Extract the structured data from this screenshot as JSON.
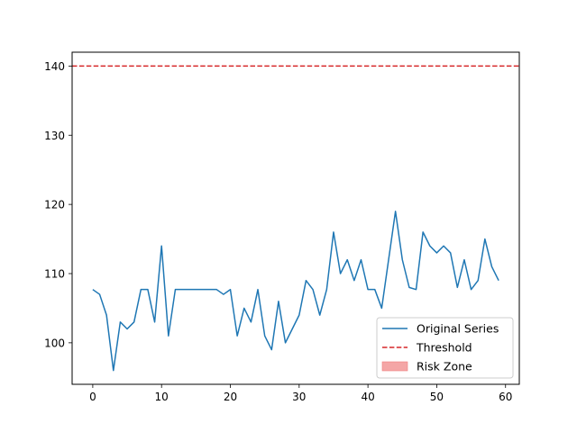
{
  "chart_data": {
    "type": "line",
    "title": "",
    "xlabel": "",
    "ylabel": "",
    "xlim": [
      -3,
      62
    ],
    "ylim": [
      94,
      142
    ],
    "xticks": [
      0,
      10,
      20,
      30,
      40,
      50,
      60
    ],
    "yticks": [
      100,
      110,
      120,
      130,
      140
    ],
    "grid": false,
    "legend_position": "lower-right",
    "series": [
      {
        "name": "Original Series",
        "color": "#1f77b4",
        "style": "solid",
        "x": [
          0,
          1,
          2,
          3,
          4,
          5,
          6,
          7,
          8,
          9,
          10,
          11,
          12,
          13,
          14,
          15,
          16,
          17,
          18,
          19,
          20,
          21,
          22,
          23,
          24,
          25,
          26,
          27,
          28,
          29,
          30,
          31,
          32,
          33,
          34,
          35,
          36,
          37,
          38,
          39,
          40,
          41,
          42,
          43,
          44,
          45,
          46,
          47,
          48,
          49,
          50,
          51,
          52,
          53,
          54,
          55,
          56,
          57,
          58,
          59
        ],
        "values": [
          107.7,
          107,
          104,
          96,
          103,
          102,
          103,
          107.7,
          107.7,
          103,
          114,
          101,
          107.7,
          107.7,
          107.7,
          107.7,
          107.7,
          107.7,
          107.7,
          107,
          107.7,
          101,
          105,
          103,
          107.7,
          101,
          99,
          106,
          100,
          102,
          104,
          109,
          107.7,
          104,
          107.7,
          116,
          110,
          112,
          109,
          112,
          107.7,
          107.7,
          105,
          112,
          119,
          112,
          108,
          107.7,
          116,
          114,
          113,
          114,
          113,
          108,
          112,
          107.7,
          109,
          115,
          111,
          109
        ]
      },
      {
        "name": "Threshold",
        "color": "#d62728",
        "style": "dashed",
        "y": 140
      }
    ],
    "legend": [
      {
        "label": "Original Series",
        "kind": "line",
        "color": "#1f77b4"
      },
      {
        "label": "Threshold",
        "kind": "dashed",
        "color": "#d62728"
      },
      {
        "label": "Risk Zone",
        "kind": "patch",
        "color": "#f4a6a6"
      }
    ]
  }
}
